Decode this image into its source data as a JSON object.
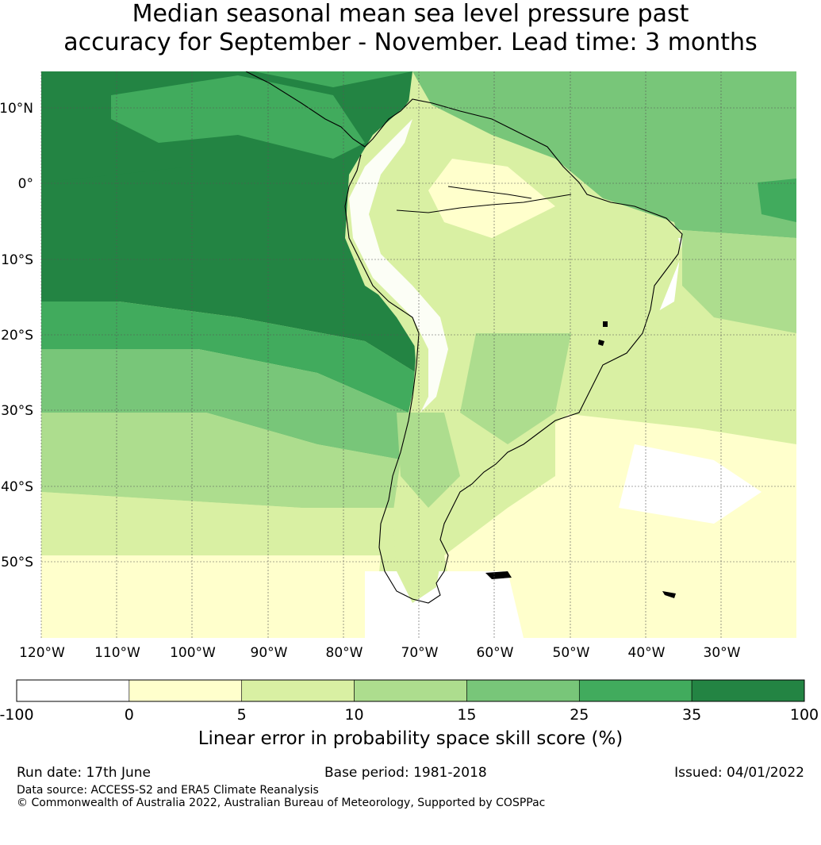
{
  "title_line1": "Median seasonal mean sea level pressure past",
  "title_line2": "accuracy for September - November. Lead time: 3 months",
  "map": {
    "latitude_labels": [
      "10°N",
      "0°",
      "10°S",
      "20°S",
      "30°S",
      "40°S",
      "50°S"
    ],
    "longitude_labels": [
      "120°W",
      "110°W",
      "100°W",
      "90°W",
      "80°W",
      "70°W",
      "60°W",
      "50°W",
      "40°W",
      "30°W"
    ],
    "grid": true,
    "region": "South America",
    "land_colour": "#000000"
  },
  "colorbar": {
    "tick_labels": [
      "-100",
      "0",
      "5",
      "10",
      "15",
      "25",
      "35",
      "100"
    ],
    "colors": [
      "#ffffff",
      "#ffffcc",
      "#d9f0a3",
      "#addd8e",
      "#78c679",
      "#41ab5d",
      "#238443"
    ],
    "label": "Linear error in probability space skill score (%)"
  },
  "footer": {
    "run_date": "Run date: 17th June",
    "base_period": "Base period: 1981-2018",
    "issued": "Issued: 04/01/2022",
    "data_source": "Data source: ACCESS-S2 and ERA5 Climate Reanalysis",
    "copyright": "© Commonwealth of Australia 2022, Australian Bureau of Meteorology, Supported by COSPPac"
  }
}
